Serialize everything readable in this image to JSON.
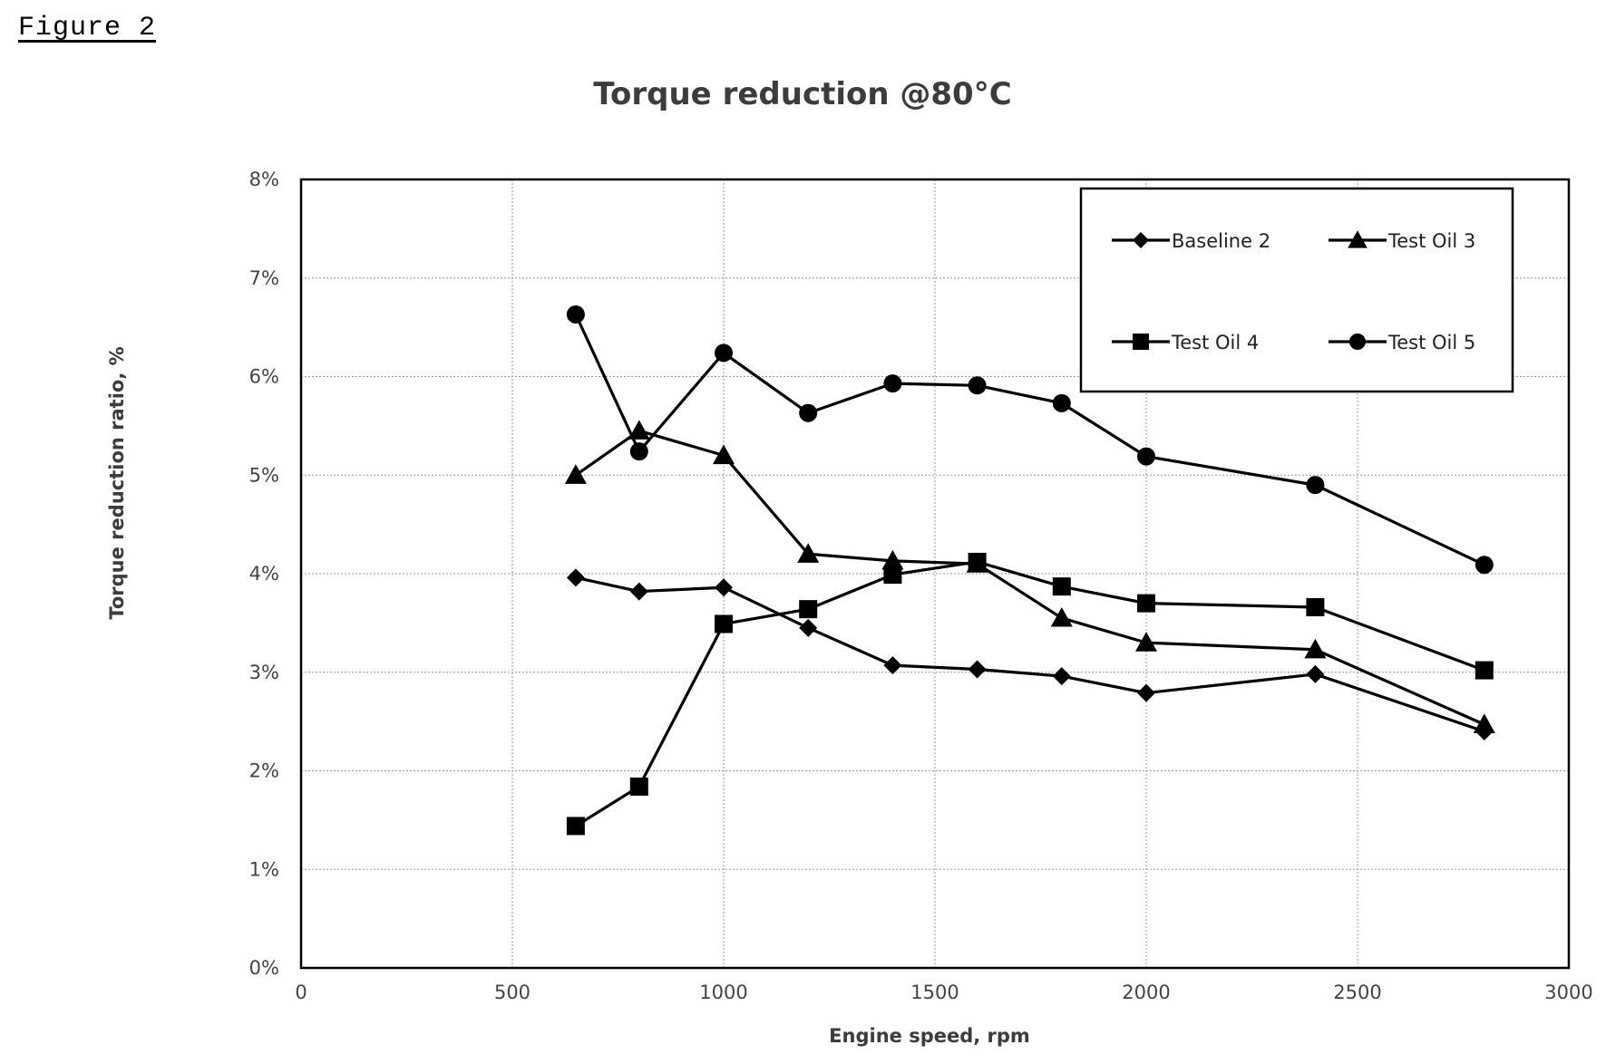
{
  "figure_label": "Figure 2",
  "chart_data": {
    "type": "line",
    "title": "Torque reduction @80°C",
    "xlabel": "Engine speed, rpm",
    "ylabel": "Torque reduction ratio, %",
    "xlim": [
      0,
      3000
    ],
    "ylim": [
      0,
      8
    ],
    "x_ticks": [
      "0",
      "500",
      "1000",
      "1500",
      "2000",
      "2500",
      "3000"
    ],
    "y_ticks": [
      "0%",
      "1%",
      "2%",
      "3%",
      "4%",
      "5%",
      "6%",
      "7%",
      "8%"
    ],
    "grid": true,
    "legend_position": "top-right",
    "series": [
      {
        "name": "Baseline 2",
        "marker": "diamond",
        "x": [
          650,
          800,
          1000,
          1200,
          1400,
          1600,
          1800,
          2000,
          2400,
          2800
        ],
        "y": [
          3.96,
          3.82,
          3.86,
          3.45,
          3.07,
          3.03,
          2.96,
          2.79,
          2.98,
          2.4
        ]
      },
      {
        "name": "Test Oil 3",
        "marker": "triangle",
        "x": [
          650,
          800,
          1000,
          1200,
          1400,
          1600,
          1800,
          2000,
          2400,
          2800
        ],
        "y": [
          5.0,
          5.45,
          5.2,
          4.2,
          4.13,
          4.1,
          3.55,
          3.3,
          3.23,
          2.47
        ]
      },
      {
        "name": "Test Oil 4",
        "marker": "square",
        "x": [
          650,
          800,
          1000,
          1200,
          1400,
          1600,
          1800,
          2000,
          2400,
          2800
        ],
        "y": [
          1.44,
          1.84,
          3.49,
          3.64,
          3.99,
          4.12,
          3.87,
          3.7,
          3.66,
          3.02
        ]
      },
      {
        "name": "Test Oil 5",
        "marker": "circle",
        "x": [
          650,
          800,
          1000,
          1200,
          1400,
          1600,
          1800,
          2000,
          2400,
          2800
        ],
        "y": [
          6.63,
          5.24,
          6.24,
          5.63,
          5.93,
          5.91,
          5.73,
          5.19,
          4.9,
          4.09
        ]
      }
    ]
  }
}
